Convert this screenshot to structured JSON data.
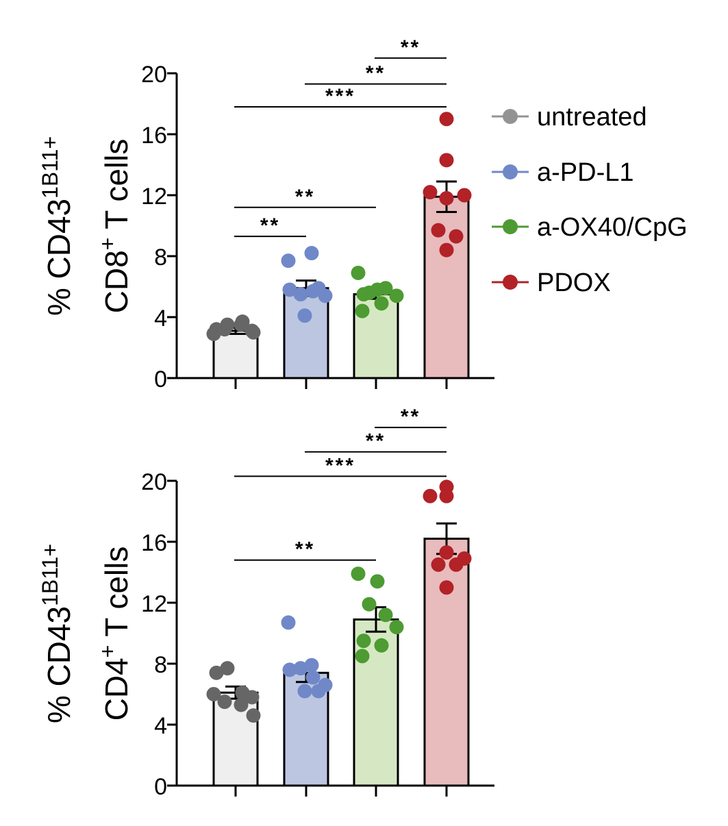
{
  "legend": [
    {
      "label": "untreated",
      "color": "#939393"
    },
    {
      "label": "a-PD-L1",
      "color": "#7088c8"
    },
    {
      "label": "a-OX40/CpG",
      "color": "#4d9b32"
    },
    {
      "label": "PDOX",
      "color": "#b22227"
    }
  ],
  "chart_data": [
    {
      "type": "bar",
      "panel": "top",
      "title": "",
      "ylabel_line1_prefix": "% CD43",
      "ylabel_line1_sup": "1B11+",
      "ylabel_line2_prefix": "CD8",
      "ylabel_line2_sup": "+",
      "ylabel_line2_suffix": " T cells",
      "ylim": [
        0,
        20
      ],
      "yticks": [
        0,
        4,
        8,
        12,
        16,
        20
      ],
      "tick_labels": [
        "0",
        "4",
        "8",
        "12",
        "16",
        "20"
      ],
      "categories": [
        "untreated",
        "a-PD-L1",
        "a-OX40/CpG",
        "PDOX"
      ],
      "bar_fill": [
        "#efefef",
        "#bcc6e1",
        "#d6e8c3",
        "#e8bbbc"
      ],
      "dot_color": [
        "#666666",
        "#7088c8",
        "#4d9b32",
        "#b22227"
      ],
      "values": [
        3.1,
        5.9,
        5.5,
        11.9
      ],
      "errors": [
        0.2,
        0.5,
        0.3,
        1.0
      ],
      "points": [
        [
          3.2,
          3.5,
          3.7,
          3.1,
          2.9,
          3.2,
          3.5,
          3.0
        ],
        [
          7.7,
          8.2,
          5.8,
          5.5,
          5.7,
          5.4,
          5.9,
          4.1
        ],
        [
          6.9,
          5.8,
          5.6,
          5.9,
          5.4,
          5.5,
          4.9,
          4.4
        ],
        [
          17.0,
          14.3,
          12.2,
          11.8,
          12.0,
          9.7,
          9.3,
          8.4
        ]
      ],
      "significance": [
        {
          "from": 0,
          "to": 1,
          "label": "**",
          "y": 9.3
        },
        {
          "from": 0,
          "to": 2,
          "label": "**",
          "y": 11.2
        },
        {
          "from": 0,
          "to": 3,
          "label": "***",
          "y": 17.8
        },
        {
          "from": 1,
          "to": 3,
          "label": "**",
          "y": 19.3
        },
        {
          "from": 2,
          "to": 3,
          "label": "**",
          "y": 21.0
        }
      ]
    },
    {
      "type": "bar",
      "panel": "bottom",
      "title": "",
      "ylabel_line1_prefix": "% CD43",
      "ylabel_line1_sup": "1B11+",
      "ylabel_line2_prefix": "CD4",
      "ylabel_line2_sup": "+",
      "ylabel_line2_suffix": " T cells",
      "ylim": [
        0,
        20
      ],
      "yticks": [
        0,
        4,
        8,
        12,
        16,
        20
      ],
      "tick_labels": [
        "0",
        "4",
        "8",
        "12",
        "16",
        "20"
      ],
      "categories": [
        "untreated",
        "a-PD-L1",
        "a-OX40/CpG",
        "PDOX"
      ],
      "bar_fill": [
        "#efefef",
        "#bcc6e1",
        "#d6e8c3",
        "#e8bbbc"
      ],
      "dot_color": [
        "#666666",
        "#7088c8",
        "#4d9b32",
        "#b22227"
      ],
      "values": [
        6.1,
        7.4,
        10.9,
        16.2
      ],
      "errors": [
        0.4,
        0.6,
        0.8,
        1.0
      ],
      "points": [
        [
          7.4,
          7.7,
          6.1,
          5.8,
          6.0,
          5.5,
          5.3,
          4.6
        ],
        [
          10.7,
          7.9,
          7.6,
          7.7,
          7.1,
          6.6,
          6.2,
          6.2
        ],
        [
          13.9,
          13.4,
          11.9,
          11.2,
          10.4,
          9.5,
          9.2,
          8.5
        ],
        [
          19.6,
          19.0,
          19.0,
          15.3,
          14.9,
          14.5,
          14.5,
          13.0
        ]
      ],
      "significance": [
        {
          "from": 0,
          "to": 2,
          "label": "**",
          "y": 14.8
        },
        {
          "from": 0,
          "to": 3,
          "label": "***",
          "y": 20.3
        },
        {
          "from": 1,
          "to": 3,
          "label": "**",
          "y": 21.9
        },
        {
          "from": 2,
          "to": 3,
          "label": "**",
          "y": 23.5
        }
      ]
    }
  ]
}
